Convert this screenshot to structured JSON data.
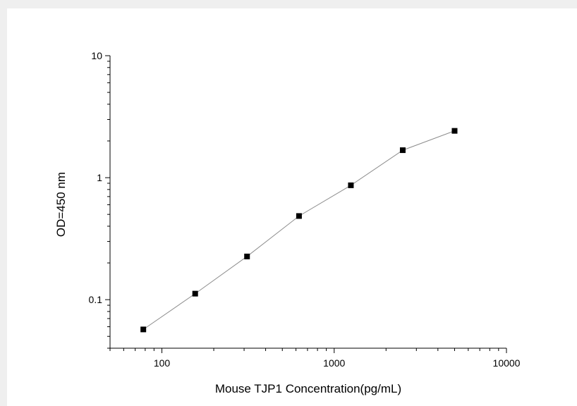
{
  "chart_data": {
    "type": "scatter",
    "title": "",
    "xlabel": "Mouse TJP1 Concentration(pg/mL)",
    "ylabel": "OD=450 nm",
    "xscale": "log",
    "yscale": "log",
    "xlim": [
      50,
      10000
    ],
    "ylim": [
      0.04,
      10
    ],
    "grid": false,
    "legend": "none",
    "x_ticks": [
      {
        "value": 100,
        "label": "100"
      },
      {
        "value": 1000,
        "label": "1000"
      },
      {
        "value": 10000,
        "label": "10000"
      }
    ],
    "y_ticks": [
      {
        "value": 0.1,
        "label": "0.1"
      },
      {
        "value": 1,
        "label": "1"
      },
      {
        "value": 10,
        "label": "10"
      }
    ],
    "series": [
      {
        "x": [
          78,
          156,
          312,
          625,
          1250,
          2500,
          5000
        ],
        "y": [
          0.057,
          0.112,
          0.226,
          0.485,
          0.866,
          1.68,
          2.42
        ],
        "marker": "square",
        "marker_color": "#000000",
        "line_color": "#8c8c8c"
      }
    ]
  }
}
